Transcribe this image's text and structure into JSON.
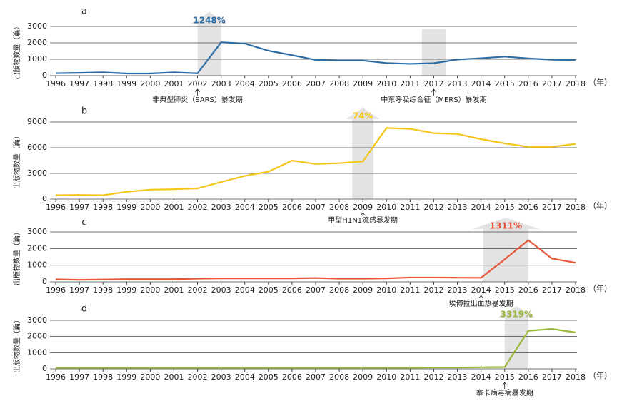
{
  "chart_data": [
    {
      "type": "line",
      "title": "a",
      "ylabel": "出版物数量（篇）",
      "xlabel": "（年）",
      "categories": [
        "1996",
        "1997",
        "1998",
        "1999",
        "2000",
        "2001",
        "2002",
        "2003",
        "2004",
        "2005",
        "2006",
        "2007",
        "2008",
        "2009",
        "2010",
        "2011",
        "2012",
        "2013",
        "2014",
        "2015",
        "2016",
        "2017",
        "2018"
      ],
      "values": [
        150,
        170,
        200,
        130,
        130,
        200,
        140,
        2030,
        1960,
        1520,
        1250,
        960,
        920,
        920,
        770,
        720,
        760,
        980,
        1060,
        1160,
        1050,
        970,
        950
      ],
      "color": "#2e6da4",
      "ylim": [
        0,
        3000
      ],
      "yticks": [
        0,
        1000,
        2000,
        3000
      ],
      "annotation": "1248%",
      "outbreaks": [
        "非典型肺炎（SARS）暴发期",
        "中东呼吸综合征（MERS）暴发期"
      ]
    },
    {
      "type": "line",
      "title": "b",
      "ylabel": "出版物数量（篇）",
      "xlabel": "（年）",
      "categories": [
        "1996",
        "1997",
        "1998",
        "1999",
        "2000",
        "2001",
        "2002",
        "2003",
        "2004",
        "2005",
        "2006",
        "2007",
        "2008",
        "2009",
        "2010",
        "2011",
        "2012",
        "2013",
        "2014",
        "2015",
        "2016",
        "2017",
        "2018"
      ],
      "values": [
        450,
        480,
        450,
        850,
        1100,
        1150,
        1250,
        2000,
        2700,
        3200,
        4500,
        4100,
        4200,
        4400,
        8300,
        8200,
        7700,
        7600,
        7000,
        6500,
        6100,
        6100,
        6450
      ],
      "color": "#f5c518",
      "ylim": [
        0,
        9000
      ],
      "yticks": [
        0,
        3000,
        6000,
        9000
      ],
      "annotation": "74%",
      "outbreaks": [
        "甲型H1N1流感暴发期"
      ]
    },
    {
      "type": "line",
      "title": "c",
      "ylabel": "出版物数量（篇）",
      "xlabel": "（年）",
      "categories": [
        "1996",
        "1997",
        "1998",
        "1999",
        "2000",
        "2001",
        "2002",
        "2003",
        "2004",
        "2005",
        "2006",
        "2007",
        "2008",
        "2009",
        "2010",
        "2011",
        "2012",
        "2013",
        "2014",
        "2015",
        "2016",
        "2017",
        "2018"
      ],
      "values": [
        150,
        120,
        140,
        160,
        160,
        160,
        190,
        210,
        210,
        210,
        210,
        230,
        190,
        190,
        210,
        260,
        260,
        250,
        240,
        1350,
        2500,
        1400,
        1150
      ],
      "color": "#e8563a",
      "ylim": [
        0,
        3000
      ],
      "yticks": [
        0,
        1000,
        2000,
        3000
      ],
      "annotation": "1311%",
      "outbreaks": [
        "埃博拉出血热暴发期"
      ]
    },
    {
      "type": "line",
      "title": "d",
      "ylabel": "出版物数量（篇）",
      "xlabel": "（年）",
      "categories": [
        "1996",
        "1997",
        "1998",
        "1999",
        "2000",
        "2001",
        "2002",
        "2003",
        "2004",
        "2005",
        "2006",
        "2007",
        "2008",
        "2009",
        "2010",
        "2011",
        "2012",
        "2013",
        "2014",
        "2015",
        "2016",
        "2017",
        "2018"
      ],
      "values": [
        70,
        70,
        70,
        70,
        70,
        70,
        70,
        70,
        70,
        70,
        70,
        70,
        70,
        70,
        70,
        70,
        80,
        80,
        100,
        110,
        2350,
        2470,
        2250
      ],
      "color": "#9ab83a",
      "ylim": [
        0,
        3000
      ],
      "yticks": [
        0,
        1000,
        2000,
        3000
      ],
      "annotation": "3319%",
      "outbreaks": [
        "寨卡病毒病暴发期"
      ]
    }
  ]
}
